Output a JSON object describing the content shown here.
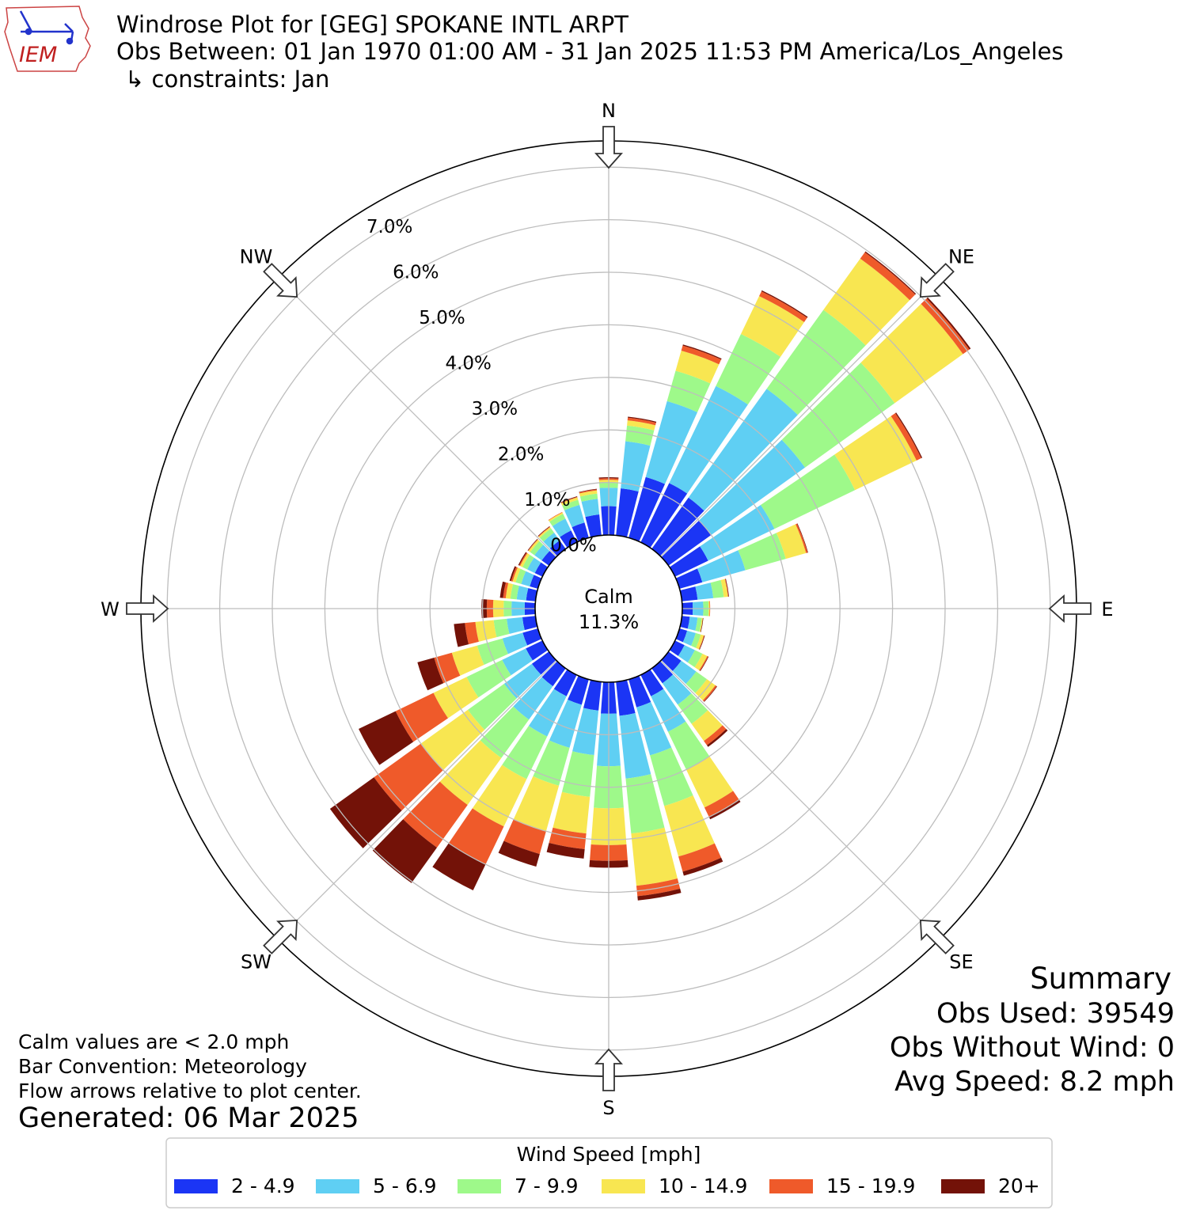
{
  "header": {
    "logo_text": "IEM",
    "title": "Windrose Plot for [GEG] SPOKANE INTL ARPT",
    "subtitle": "Obs Between: 01 Jan 1970 01:00 AM - 31 Jan 2025 11:53 PM America/Los_Angeles",
    "constraints": "↳ constraints: Jan"
  },
  "chart_data": {
    "type": "windrose",
    "direction_labels": [
      "N",
      "NE",
      "E",
      "SE",
      "S",
      "SW",
      "W",
      "NW"
    ],
    "radial_ticks": [
      "0.0%",
      "1.0%",
      "2.0%",
      "3.0%",
      "4.0%",
      "5.0%",
      "6.0%",
      "7.0%"
    ],
    "radial_range_percent": [
      0,
      7.5
    ],
    "calm": {
      "label": "Calm",
      "value": "11.3%"
    },
    "speed_bins": [
      "2 - 4.9",
      "5 - 6.9",
      "7 - 9.9",
      "10 - 14.9",
      "15 - 19.9",
      "20+"
    ],
    "bin_colors": [
      "#1b35f5",
      "#5fcff3",
      "#9ef98a",
      "#f8e651",
      "#ef5a2a",
      "#731208"
    ],
    "directions_deg": [
      0,
      10,
      20,
      30,
      40,
      50,
      60,
      70,
      80,
      90,
      100,
      110,
      120,
      130,
      140,
      150,
      160,
      170,
      180,
      190,
      200,
      210,
      220,
      230,
      240,
      250,
      260,
      270,
      280,
      290,
      300,
      310,
      320,
      330,
      340,
      350
    ],
    "cumulative_percent": [
      [
        0.55,
        0.9,
        1.0,
        1.05,
        1.08,
        1.1
      ],
      [
        0.9,
        1.8,
        2.1,
        2.2,
        2.25,
        2.27
      ],
      [
        1.2,
        2.7,
        3.3,
        3.7,
        3.8,
        3.82
      ],
      [
        1.25,
        3.3,
        4.4,
        5.2,
        5.3,
        5.32
      ],
      [
        1.2,
        3.75,
        5.6,
        6.8,
        6.95,
        6.97
      ],
      [
        1.0,
        3.2,
        5.3,
        6.9,
        7.05,
        7.08
      ],
      [
        0.7,
        2.1,
        3.8,
        5.1,
        5.2,
        5.22
      ],
      [
        0.45,
        1.3,
        2.1,
        2.5,
        2.53,
        2.54
      ],
      [
        0.3,
        0.6,
        0.8,
        0.88,
        0.89,
        0.9
      ],
      [
        0.2,
        0.4,
        0.5,
        0.52,
        0.53,
        0.53
      ],
      [
        0.15,
        0.3,
        0.38,
        0.4,
        0.4,
        0.41
      ],
      [
        0.15,
        0.32,
        0.42,
        0.48,
        0.49,
        0.5
      ],
      [
        0.2,
        0.42,
        0.58,
        0.68,
        0.7,
        0.71
      ],
      [
        0.3,
        0.65,
        0.9,
        1.1,
        1.13,
        1.14
      ],
      [
        0.35,
        0.85,
        1.3,
        1.7,
        1.8,
        1.84
      ],
      [
        0.45,
        1.2,
        2.0,
        2.8,
        3.0,
        3.05
      ],
      [
        0.55,
        1.5,
        2.5,
        3.5,
        3.8,
        3.88
      ],
      [
        0.65,
        1.85,
        2.9,
        3.9,
        4.1,
        4.18
      ],
      [
        0.6,
        1.6,
        2.4,
        3.1,
        3.4,
        3.53
      ],
      [
        0.55,
        1.4,
        2.2,
        2.9,
        3.2,
        3.38
      ],
      [
        0.5,
        1.35,
        2.1,
        3.0,
        3.45,
        3.7
      ],
      [
        0.45,
        1.3,
        2.2,
        3.2,
        4.0,
        4.55
      ],
      [
        0.42,
        1.2,
        2.1,
        3.2,
        4.2,
        5.03
      ],
      [
        0.4,
        1.05,
        1.9,
        3.0,
        4.1,
        5.13
      ],
      [
        0.35,
        0.85,
        1.6,
        2.3,
        3.1,
        3.88
      ],
      [
        0.3,
        0.7,
        1.2,
        1.7,
        2.05,
        2.38
      ],
      [
        0.25,
        0.55,
        0.8,
        1.15,
        1.35,
        1.56
      ],
      [
        0.2,
        0.45,
        0.6,
        0.8,
        0.92,
        1.02
      ],
      [
        0.18,
        0.36,
        0.48,
        0.57,
        0.62,
        0.68
      ],
      [
        0.16,
        0.33,
        0.44,
        0.5,
        0.53,
        0.56
      ],
      [
        0.16,
        0.32,
        0.42,
        0.47,
        0.49,
        0.51
      ],
      [
        0.17,
        0.34,
        0.44,
        0.48,
        0.49,
        0.5
      ],
      [
        0.2,
        0.38,
        0.48,
        0.51,
        0.52,
        0.53
      ],
      [
        0.25,
        0.5,
        0.6,
        0.63,
        0.64,
        0.64
      ],
      [
        0.3,
        0.65,
        0.75,
        0.8,
        0.81,
        0.82
      ],
      [
        0.4,
        0.7,
        0.8,
        0.86,
        0.88,
        0.89
      ]
    ]
  },
  "summary": {
    "title": "Summary",
    "obs_used": "Obs Used: 39549",
    "obs_without_wind": "Obs Without Wind: 0",
    "avg_speed": "Avg Speed: 8.2 mph"
  },
  "notes": {
    "calm_note": "Calm values are < 2.0 mph",
    "bar_convention": "Bar Convention: Meteorology",
    "flow_arrows": "Flow arrows relative to plot center.",
    "generated": "Generated: 06 Mar 2025"
  },
  "legend": {
    "title": "Wind Speed [mph]"
  }
}
